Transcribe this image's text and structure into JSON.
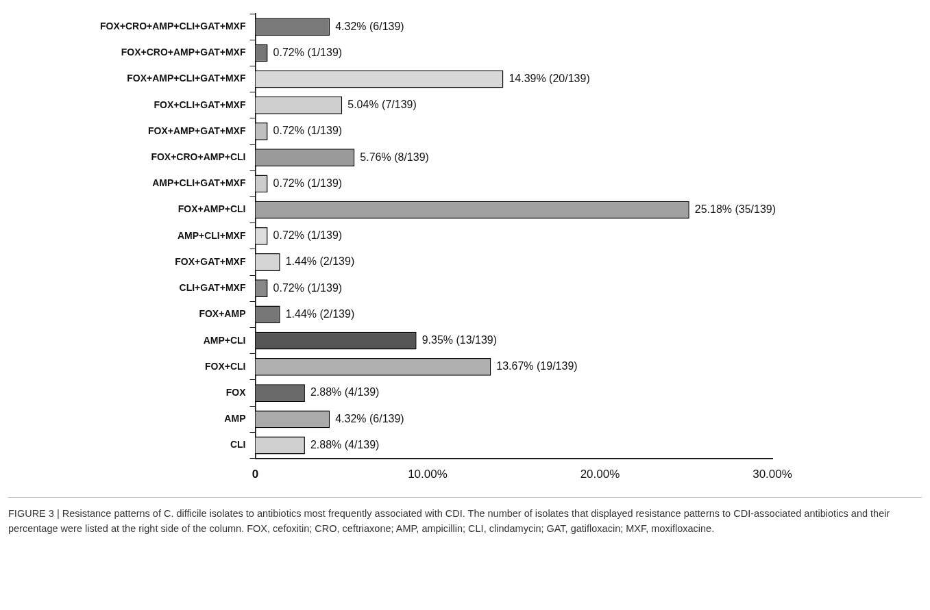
{
  "chart_data": {
    "type": "bar",
    "orientation": "horizontal",
    "categories": [
      "FOX+CRO+AMP+CLI+GAT+MXF",
      "FOX+CRO+AMP+GAT+MXF",
      "FOX+AMP+CLI+GAT+MXF",
      "FOX+CLI+GAT+MXF",
      "FOX+AMP+GAT+MXF",
      "FOX+CRO+AMP+CLI",
      "AMP+CLI+GAT+MXF",
      "FOX+AMP+CLI",
      "AMP+CLI+MXF",
      "FOX+GAT+MXF",
      "CLI+GAT+MXF",
      "FOX+AMP",
      "AMP+CLI",
      "FOX+CLI",
      "FOX",
      "AMP",
      "CLI"
    ],
    "values": [
      4.32,
      0.72,
      14.39,
      5.04,
      0.72,
      5.76,
      0.72,
      25.18,
      0.72,
      1.44,
      0.72,
      1.44,
      9.35,
      13.67,
      2.88,
      4.32,
      2.88
    ],
    "colors": [
      "#7a7a7a",
      "#777777",
      "#d8d8d8",
      "#cfcfcf",
      "#bfbfbf",
      "#9a9a9a",
      "#cccccc",
      "#a0a0a0",
      "#dddddd",
      "#d5d5d5",
      "#888888",
      "#777777",
      "#555555",
      "#b0b0b0",
      "#6a6a6a",
      "#aaaaaa",
      "#d0d0d0"
    ],
    "value_labels": [
      "4.32% (6/139)",
      "0.72% (1/139)",
      "14.39% (20/139)",
      "5.04% (7/139)",
      "0.72% (1/139)",
      "5.76% (8/139)",
      "0.72% (1/139)",
      "25.18% (35/139)",
      "0.72% (1/139)",
      "1.44% (2/139)",
      "0.72% (1/139)",
      "1.44% (2/139)",
      "9.35% (13/139)",
      "13.67% (19/139)",
      "2.88% (4/139)",
      "4.32% (6/139)",
      "2.88% (4/139)"
    ],
    "xlim": [
      0,
      30
    ],
    "xticks": [
      {
        "value": 0,
        "label": "0"
      },
      {
        "value": 10,
        "label": "10.00%"
      },
      {
        "value": 20,
        "label": "20.00%"
      },
      {
        "value": 30,
        "label": "30.00%"
      }
    ],
    "grid": false,
    "legend": false,
    "annotations": [
      "FIGURE 3 | Resistance patterns of C. difficile isolates to antibiotics most frequently associated with CDI. The number of isolates that displayed resistance patterns to CDI-associated antibiotics and their percentage were listed at the right side of the column. FOX, cefoxitin; CRO, ceftriaxone; AMP, ampicillin; CLI, clindamycin; GAT, gatifloxacin; MXF, moxifloxacine."
    ]
  }
}
